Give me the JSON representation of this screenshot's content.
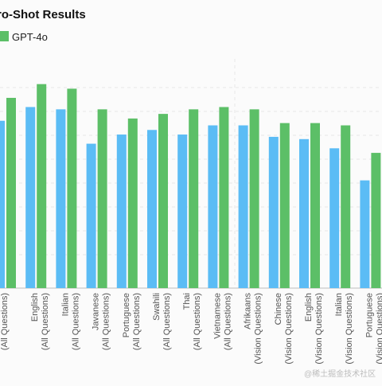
{
  "chart_data": {
    "type": "bar",
    "title": "ro-Shot Results",
    "legend": {
      "placement": "top-left",
      "visible_entries": [
        "GPT-4o"
      ]
    },
    "categories": [
      "(All Questions)",
      "English (All Questions)",
      "Italian (All Questions)",
      "Javanese (All Questions)",
      "Portuguese (All Questions)",
      "Swahili (All Questions)",
      "Thai (All Questions)",
      "Vietnamese (All Questions)",
      "Afrikaans (Vision Questions)",
      "Chinese (Vision Questions)",
      "English (Vision Questions)",
      "Italian (Vision Questions)",
      "Portuguese (Vision Questions)"
    ],
    "category_label_lines": [
      [
        "(All Questions)"
      ],
      [
        "English",
        "(All Questions)"
      ],
      [
        "Italian",
        "(All Questions)"
      ],
      [
        "Javanese",
        "(All Questions)"
      ],
      [
        "Portuguese",
        "(All Questions)"
      ],
      [
        "Swahili",
        "(All Questions)"
      ],
      [
        "Thai",
        "(All Questions)"
      ],
      [
        "Vietnamese",
        "(All Questions)"
      ],
      [
        "Afrikaans",
        "(Vision Questions)"
      ],
      [
        "Chinese",
        "(Vision Questions)"
      ],
      [
        "English",
        "(Vision Questions)"
      ],
      [
        "Italian",
        "(Vision Questions)"
      ],
      [
        "Portuguese",
        "(Vision Questions)"
      ]
    ],
    "series": [
      {
        "values": [
          0.73,
          0.79,
          0.78,
          0.63,
          0.67,
          0.69,
          0.67,
          0.71,
          0.71,
          0.66,
          0.65,
          0.61,
          0.47
        ],
        "color": "#5bbcf5"
      },
      {
        "name": "GPT-4o",
        "values": [
          0.83,
          0.89,
          0.87,
          0.78,
          0.74,
          0.76,
          0.78,
          0.79,
          0.78,
          0.72,
          0.72,
          0.71,
          0.59
        ],
        "color": "#5cbf67"
      }
    ],
    "ylim": [
      0,
      1
    ],
    "grid": true,
    "watermark": "@稀土掘金技术社区"
  }
}
